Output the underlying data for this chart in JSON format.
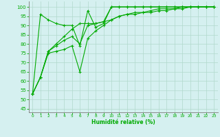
{
  "bg_color": "#d5f0f0",
  "grid_color": "#b0d8cc",
  "line_color": "#00aa00",
  "marker_color": "#00aa00",
  "xlabel": "Humidité relative (%)",
  "xlabel_color": "#00aa00",
  "tick_color": "#00aa00",
  "ylim": [
    43,
    103
  ],
  "xlim": [
    -0.5,
    23.5
  ],
  "yticks": [
    45,
    50,
    55,
    60,
    65,
    70,
    75,
    80,
    85,
    90,
    95,
    100
  ],
  "xticks": [
    0,
    1,
    2,
    3,
    4,
    5,
    6,
    7,
    8,
    9,
    10,
    11,
    12,
    13,
    14,
    15,
    16,
    17,
    18,
    19,
    20,
    21,
    22,
    23
  ],
  "series": [
    [
      53,
      96,
      93,
      91,
      90,
      90,
      79,
      98,
      89,
      91,
      100,
      100,
      100,
      100,
      100,
      100,
      100,
      100,
      100,
      100,
      100,
      100,
      100,
      100
    ],
    [
      53,
      62,
      75,
      76,
      77,
      79,
      65,
      83,
      87,
      90,
      93,
      95,
      96,
      96,
      97,
      97,
      98,
      98,
      99,
      99,
      100,
      100,
      100,
      100
    ],
    [
      53,
      62,
      76,
      79,
      82,
      84,
      80,
      90,
      91,
      92,
      100,
      100,
      100,
      100,
      100,
      100,
      100,
      100,
      100,
      100,
      100,
      100,
      100,
      100
    ],
    [
      53,
      62,
      76,
      80,
      84,
      88,
      91,
      91,
      91,
      92,
      93,
      95,
      96,
      97,
      97,
      98,
      99,
      99,
      99,
      100,
      100,
      100,
      100,
      100
    ]
  ]
}
